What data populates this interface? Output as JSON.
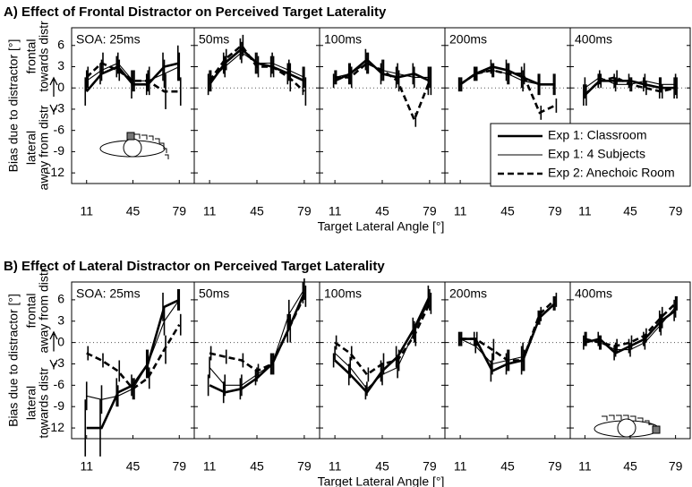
{
  "chart_data": [
    {
      "type": "line",
      "title": "A) Effect of Frontal Distractor on Perceived Target Laterality",
      "ylabel": "Bias due to distractor [°]",
      "xlabel": "Target Lateral Angle [°]",
      "y_annotation_top": [
        "frontal",
        "towards distr"
      ],
      "y_annotation_bottom": [
        "lateral",
        "away from distr"
      ],
      "x": [
        11,
        22,
        34,
        45,
        56,
        68,
        79
      ],
      "xlim": [
        0,
        90
      ],
      "xticks": [
        11,
        45,
        79
      ],
      "ylim": [
        -13.5,
        8.5
      ],
      "yticks": [
        6,
        3,
        0,
        -3,
        -6,
        -9,
        -12
      ],
      "legend": "lower right",
      "series": [
        {
          "name": "Exp 1: Classroom",
          "color": "#000000",
          "line_weight": "thick",
          "line_style": "solid"
        },
        {
          "name": "Exp 1: 4 Subjects",
          "color": "#000000",
          "line_weight": "thin",
          "line_style": "solid"
        },
        {
          "name": "Exp 2: Anechoic Room",
          "color": "#000000",
          "line_weight": "thick",
          "line_style": "dashed"
        }
      ],
      "panels": [
        {
          "title": "SOA: 25ms",
          "series": [
            {
              "values": [
                -0.5,
                2,
                3,
                0.5,
                0.5,
                3,
                3.5
              ],
              "errors": [
                2,
                1.5,
                1.5,
                2,
                1.5,
                2,
                2.5
              ]
            },
            {
              "values": [
                1,
                2.5,
                3.5,
                1,
                1,
                2,
                3
              ],
              "errors": [
                1.5,
                1.5,
                1.5,
                1.5,
                1.5,
                2,
                2
              ]
            },
            {
              "values": [
                1.5,
                3.5,
                2.5,
                1,
                1,
                -0.5,
                -0.5
              ],
              "errors": [
                1.5,
                1.5,
                1.5,
                1.5,
                2,
                2.5,
                2
              ]
            }
          ]
        },
        {
          "title": "50ms",
          "series": [
            {
              "values": [
                0.5,
                3.5,
                5.5,
                3.5,
                3,
                2,
                1
              ],
              "errors": [
                1.5,
                1.5,
                1.5,
                1.5,
                1.5,
                1.5,
                2
              ]
            },
            {
              "values": [
                1,
                3,
                5,
                3.5,
                3.5,
                2.5,
                1.5
              ],
              "errors": [
                1.5,
                1.5,
                1.5,
                1.5,
                1.5,
                1.5,
                1.5
              ]
            },
            {
              "values": [
                1,
                4,
                6,
                3,
                3,
                1.5,
                -0.5
              ],
              "errors": [
                1.5,
                1.5,
                1.5,
                1.5,
                1.5,
                2,
                2
              ]
            }
          ]
        },
        {
          "title": "100ms",
          "series": [
            {
              "values": [
                1,
                2,
                4,
                2,
                1.5,
                2,
                1
              ],
              "errors": [
                1,
                1.5,
                1.5,
                1.5,
                1.5,
                1.5,
                2
              ]
            },
            {
              "values": [
                1.5,
                2,
                3.5,
                2.5,
                2,
                1.5,
                1.5
              ],
              "errors": [
                1,
                1.5,
                1.5,
                1.5,
                1.5,
                1.5,
                1.5
              ]
            },
            {
              "values": [
                1.5,
                1.5,
                3.5,
                2.5,
                1,
                -4.5,
                1
              ],
              "errors": [
                1,
                1.5,
                1.5,
                1.5,
                1.5,
                1,
                2
              ]
            }
          ]
        },
        {
          "title": "200ms",
          "series": [
            {
              "values": [
                0.5,
                2,
                3,
                2.5,
                1.5,
                0.5,
                0.5
              ],
              "errors": [
                1,
                1,
                1,
                1.5,
                1.5,
                1.5,
                1.5
              ]
            },
            {
              "values": [
                0.5,
                2,
                2.5,
                2,
                1,
                0.5,
                0.5
              ],
              "errors": [
                1,
                1,
                1,
                1.5,
                1.5,
                1.5,
                1.5
              ]
            },
            {
              "values": [
                0.5,
                2,
                2.5,
                2,
                2,
                -3.5,
                -2.5
              ],
              "errors": [
                1,
                1,
                1,
                1.5,
                1.5,
                1,
                1
              ]
            }
          ]
        },
        {
          "title": "400ms",
          "series": [
            {
              "values": [
                -1,
                1,
                1,
                1,
                0.5,
                0,
                0
              ],
              "errors": [
                1.5,
                1,
                1,
                1,
                1,
                1.5,
                1.5
              ]
            },
            {
              "values": [
                0,
                1.5,
                0.5,
                0.5,
                1,
                0.5,
                0.5
              ],
              "errors": [
                1.5,
                1,
                1,
                1,
                1,
                1,
                1.5
              ]
            },
            {
              "values": [
                -1,
                1,
                1.5,
                0.5,
                0,
                -0.5,
                0
              ],
              "errors": [
                1.5,
                1,
                1,
                1,
                1,
                1,
                1.5
              ]
            }
          ]
        }
      ]
    },
    {
      "type": "line",
      "title": "B) Effect of Lateral Distractor on Perceived Target Laterality",
      "ylabel": "Bias due to distractor [°]",
      "xlabel": "Target Lateral Angle [°]",
      "y_annotation_top": [
        "frontal",
        "away from distr"
      ],
      "y_annotation_bottom": [
        "lateral",
        "towards distr"
      ],
      "x": [
        11,
        22,
        34,
        45,
        56,
        68,
        79
      ],
      "xlim": [
        0,
        90
      ],
      "xticks": [
        11,
        45,
        79
      ],
      "ylim": [
        -13.5,
        8.5
      ],
      "yticks": [
        6,
        3,
        0,
        -3,
        -6,
        -9,
        -12
      ],
      "series": [
        {
          "color": "#000000",
          "line_weight": "thick",
          "line_style": "solid"
        },
        {
          "color": "#000000",
          "line_weight": "thin",
          "line_style": "solid"
        },
        {
          "color": "#000000",
          "line_weight": "thick",
          "line_style": "dashed"
        }
      ],
      "panels": [
        {
          "title": "SOA: 25ms",
          "series": [
            {
              "values": [
                -12,
                -12,
                -7,
                -6,
                -3,
                5,
                6
              ],
              "errors": [
                4,
                4,
                2,
                1.5,
                2,
                2,
                1.5
              ]
            },
            {
              "values": [
                -7.5,
                -8,
                -7.5,
                -6.5,
                -3,
                3,
                6
              ],
              "errors": [
                2,
                2,
                1.5,
                1.5,
                2,
                2,
                1.5
              ]
            },
            {
              "values": [
                -1.5,
                -2.5,
                -4,
                -6.5,
                -5,
                -1,
                2.5
              ],
              "errors": [
                1,
                1,
                1.5,
                1.5,
                1.5,
                2,
                1.5
              ]
            }
          ]
        },
        {
          "title": "50ms",
          "series": [
            {
              "values": [
                -6,
                -7,
                -6.5,
                -5,
                -3,
                2,
                7
              ],
              "errors": [
                1.5,
                1.5,
                1.5,
                1,
                1.5,
                2,
                1.5
              ]
            },
            {
              "values": [
                -3.5,
                -6,
                -6,
                -4.5,
                -3,
                4,
                7.5
              ],
              "errors": [
                1.5,
                1.5,
                1.5,
                1,
                1.5,
                2,
                1.5
              ]
            },
            {
              "values": [
                -1.5,
                -2,
                -2.5,
                -4,
                -3,
                2,
                6.5
              ],
              "errors": [
                1,
                1,
                1,
                1,
                1.5,
                2,
                1.5
              ]
            }
          ]
        },
        {
          "title": "100ms",
          "series": [
            {
              "values": [
                -2.5,
                -4.5,
                -7,
                -4,
                -2,
                2,
                6.5
              ],
              "errors": [
                1,
                1.5,
                1,
                1.5,
                1.5,
                1.5,
                1.5
              ]
            },
            {
              "values": [
                -1.5,
                -3.5,
                -6.5,
                -4.5,
                -3.5,
                1.5,
                6
              ],
              "errors": [
                1,
                1.5,
                1,
                1.5,
                1.5,
                1.5,
                1.5
              ]
            },
            {
              "values": [
                0,
                -1.5,
                -4.5,
                -3,
                -2.5,
                1,
                5.5
              ],
              "errors": [
                1,
                1,
                1,
                1.5,
                1.5,
                1.5,
                1.5
              ]
            }
          ]
        },
        {
          "title": "200ms",
          "series": [
            {
              "values": [
                0.5,
                0.5,
                -4,
                -3,
                -2.5,
                3.5,
                5.5
              ],
              "errors": [
                1,
                1,
                1.5,
                1.5,
                2,
                1,
                1
              ]
            },
            {
              "values": [
                0.5,
                -0.5,
                -3,
                -2.5,
                -2,
                3.5,
                5.5
              ],
              "errors": [
                1,
                1,
                1.5,
                1.5,
                2,
                1,
                1
              ]
            },
            {
              "values": [
                0.5,
                0.5,
                -1,
                -2.5,
                -2.5,
                4,
                6
              ],
              "errors": [
                1,
                1,
                1.5,
                1.5,
                1.5,
                1,
                1
              ]
            }
          ]
        },
        {
          "title": "400ms",
          "series": [
            {
              "values": [
                0,
                0.5,
                -1.5,
                -0.5,
                0.5,
                3,
                4.5
              ],
              "errors": [
                1,
                1,
                1,
                1,
                1,
                1.5,
                1.5
              ]
            },
            {
              "values": [
                0.5,
                0,
                -1,
                -1,
                0,
                2.5,
                5
              ],
              "errors": [
                1,
                1,
                1,
                1,
                1,
                1.5,
                1.5
              ]
            },
            {
              "values": [
                0.5,
                0,
                -0.5,
                0,
                1,
                3.5,
                5.5
              ],
              "errors": [
                1,
                1,
                1,
                1,
                1,
                1.5,
                1
              ]
            }
          ]
        }
      ]
    }
  ]
}
